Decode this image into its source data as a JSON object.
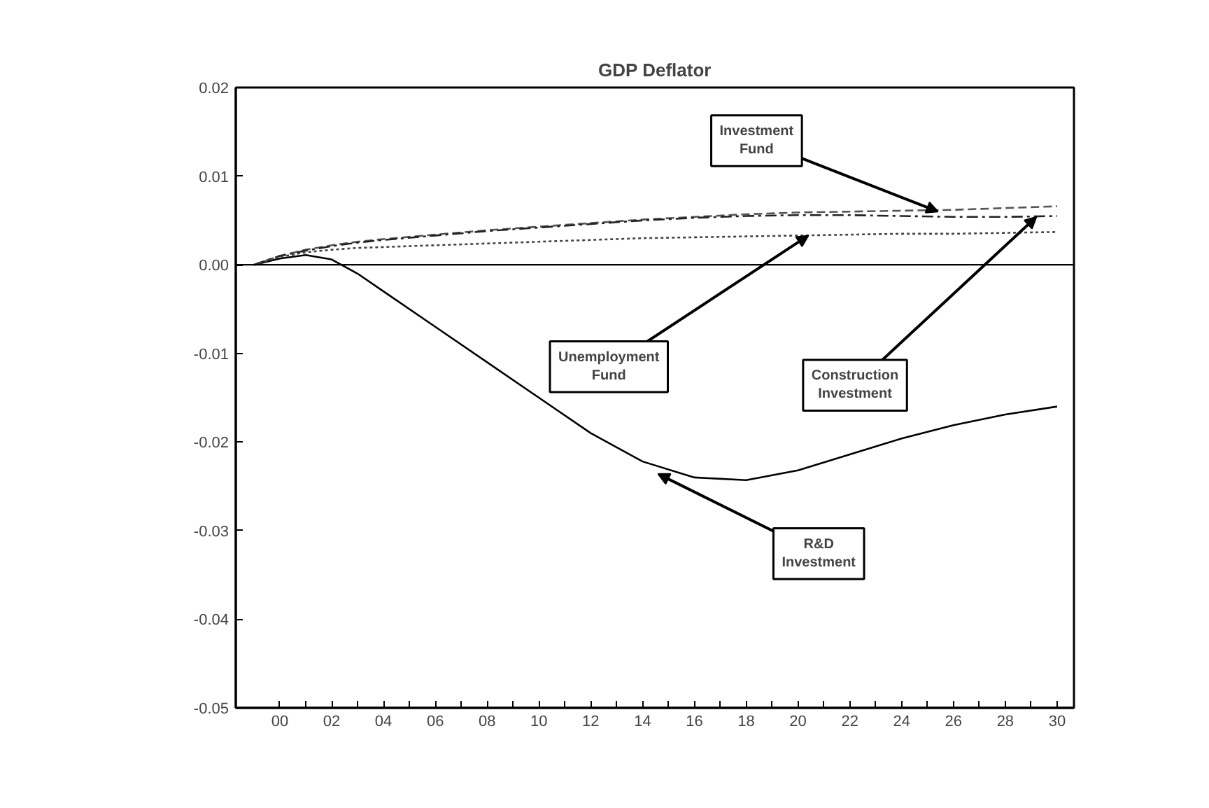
{
  "chart_data": {
    "type": "line",
    "title": "GDP Deflator",
    "x": [
      1999,
      2000,
      2001,
      2002,
      2003,
      2004,
      2006,
      2008,
      2010,
      2012,
      2014,
      2016,
      2018,
      2020,
      2022,
      2024,
      2026,
      2028,
      2030
    ],
    "series": [
      {
        "color": "#000000",
        "line_style": "solid",
        "values": [
          0,
          0.0007,
          0.0011,
          0.0006,
          -0.001,
          -0.003,
          -0.007,
          -0.011,
          -0.015,
          -0.019,
          -0.0222,
          -0.024,
          -0.0243,
          -0.0232,
          -0.0214,
          -0.0196,
          -0.0181,
          -0.0169,
          -0.016
        ]
      },
      {
        "color": "#555555",
        "line_style": "dashed",
        "values": [
          0,
          0.001,
          0.0017,
          0.0022,
          0.0026,
          0.0029,
          0.0034,
          0.0039,
          0.0043,
          0.0047,
          0.0051,
          0.0054,
          0.0057,
          0.0059,
          0.006,
          0.0061,
          0.0062,
          0.0064,
          0.0066
        ]
      },
      {
        "color": "#222222",
        "line_style": "dashdot",
        "values": [
          0,
          0.001,
          0.0016,
          0.0021,
          0.0025,
          0.0028,
          0.0033,
          0.0038,
          0.0042,
          0.0046,
          0.005,
          0.0053,
          0.0055,
          0.0056,
          0.0056,
          0.0055,
          0.0054,
          0.0054,
          0.0055
        ]
      },
      {
        "color": "#444444",
        "line_style": "dotted",
        "values": [
          0,
          0.0009,
          0.0014,
          0.0017,
          0.0019,
          0.002,
          0.0022,
          0.0024,
          0.0026,
          0.0028,
          0.003,
          0.0031,
          0.0032,
          0.0033,
          0.0034,
          0.0035,
          0.0035,
          0.0036,
          0.0037
        ]
      }
    ],
    "xlim": [
      1998.3,
      2030.65
    ],
    "xticks": [
      {
        "value": 2000,
        "label": "00"
      },
      {
        "value": 2001,
        "label": null
      },
      {
        "value": 2002,
        "label": "02"
      },
      {
        "value": 2003,
        "label": null
      },
      {
        "value": 2004,
        "label": "04"
      },
      {
        "value": 2005,
        "label": null
      },
      {
        "value": 2006,
        "label": "06"
      },
      {
        "value": 2007,
        "label": null
      },
      {
        "value": 2008,
        "label": "08"
      },
      {
        "value": 2009,
        "label": null
      },
      {
        "value": 2010,
        "label": "10"
      },
      {
        "value": 2011,
        "label": null
      },
      {
        "value": 2012,
        "label": "12"
      },
      {
        "value": 2013,
        "label": null
      },
      {
        "value": 2014,
        "label": "14"
      },
      {
        "value": 2015,
        "label": null
      },
      {
        "value": 2016,
        "label": "16"
      },
      {
        "value": 2017,
        "label": null
      },
      {
        "value": 2018,
        "label": "18"
      },
      {
        "value": 2019,
        "label": null
      },
      {
        "value": 2020,
        "label": "20"
      },
      {
        "value": 2021,
        "label": null
      },
      {
        "value": 2022,
        "label": "22"
      },
      {
        "value": 2023,
        "label": null
      },
      {
        "value": 2024,
        "label": "24"
      },
      {
        "value": 2025,
        "label": null
      },
      {
        "value": 2026,
        "label": "26"
      },
      {
        "value": 2027,
        "label": null
      },
      {
        "value": 2028,
        "label": "28"
      },
      {
        "value": 2029,
        "label": null
      },
      {
        "value": 2030,
        "label": "30"
      }
    ],
    "ylim": [
      -0.05,
      0.02
    ],
    "yticks": [
      {
        "value": 0.02,
        "label": "0.02"
      },
      {
        "value": 0.01,
        "label": "0.01"
      },
      {
        "value": 0,
        "label": "0.00"
      },
      {
        "value": -0.01,
        "label": "-0.01"
      },
      {
        "value": -0.02,
        "label": "-0.02"
      },
      {
        "value": -0.03,
        "label": "-0.03"
      },
      {
        "value": -0.04,
        "label": "-0.04"
      },
      {
        "value": -0.05,
        "label": "-0.05"
      }
    ],
    "ref_lines": [
      {
        "axis": "y",
        "value": 0,
        "color": "#000000"
      }
    ],
    "grid": false,
    "marker": "none",
    "annotations": [
      {
        "text": "Investment\nFund",
        "x": 2025.4,
        "y": 0.006
      },
      {
        "text": "Unemployment\nFund",
        "x": 2020.4,
        "y": 0.0033
      },
      {
        "text": "Construction\nInvestment",
        "x": 2029.2,
        "y": 0.0054
      },
      {
        "text": "R&D\nInvestment",
        "x": 2014.6,
        "y": -0.0236
      }
    ]
  }
}
